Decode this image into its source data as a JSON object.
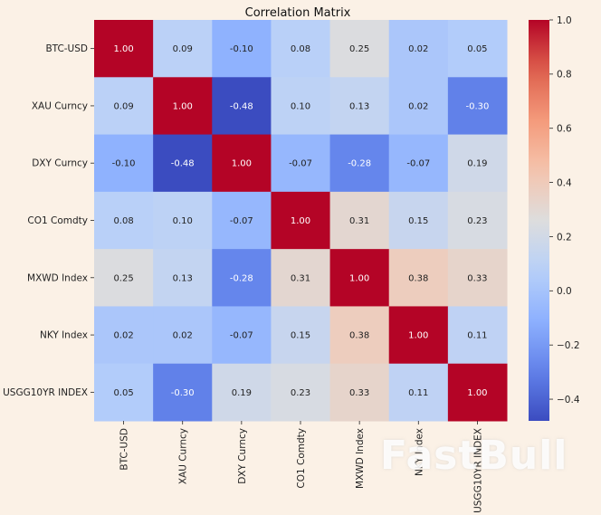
{
  "chart_data": {
    "type": "heatmap",
    "title": "Correlation Matrix",
    "row_labels": [
      "BTC-USD",
      "XAU Curncy",
      "DXY Curncy",
      "CO1 Comdty",
      "MXWD Index",
      "NKY Index",
      "USGG10YR INDEX"
    ],
    "col_labels": [
      "BTC-USD",
      "XAU Curncy",
      "DXY Curncy",
      "CO1 Comdty",
      "MXWD Index",
      "NKY Index",
      "USGG10YR INDEX"
    ],
    "values": [
      [
        1.0,
        0.09,
        -0.1,
        0.08,
        0.25,
        0.02,
        0.05
      ],
      [
        0.09,
        1.0,
        -0.48,
        0.1,
        0.13,
        0.02,
        -0.3
      ],
      [
        -0.1,
        -0.48,
        1.0,
        -0.07,
        -0.28,
        -0.07,
        0.19
      ],
      [
        0.08,
        0.1,
        -0.07,
        1.0,
        0.31,
        0.15,
        0.23
      ],
      [
        0.25,
        0.13,
        -0.28,
        0.31,
        1.0,
        0.38,
        0.33
      ],
      [
        0.02,
        0.02,
        -0.07,
        0.15,
        0.38,
        1.0,
        0.11
      ],
      [
        0.05,
        -0.3,
        0.19,
        0.23,
        0.33,
        0.11,
        1.0
      ]
    ],
    "colormap": "coolwarm",
    "vmin": -0.48,
    "vmax": 1.0,
    "colorbar_ticks": [
      1.0,
      0.8,
      0.6,
      0.4,
      0.2,
      0.0,
      -0.2,
      -0.4
    ],
    "colorbar_tick_labels": [
      "1.0",
      "0.8",
      "0.6",
      "0.4",
      "0.2",
      "0.0",
      "−0.2",
      "−0.4"
    ],
    "annotation_format": "0.00"
  },
  "watermark": "FastBull"
}
